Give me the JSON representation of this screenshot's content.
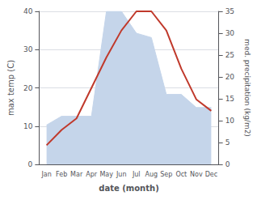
{
  "chart_data": {
    "type": "line",
    "xlabel": "date (month)",
    "ylabel": "max temp (C)",
    "y2label": "med. precipitation (kg/m2)",
    "categories": [
      "Jan",
      "Feb",
      "Mar",
      "Apr",
      "May",
      "Jun",
      "Jul",
      "Aug",
      "Sep",
      "Oct",
      "Nov",
      "Dec"
    ],
    "series": [
      {
        "type": "area",
        "axis": "y2",
        "color": "#c5d5ea",
        "values": [
          9,
          11,
          11,
          11,
          35,
          35,
          30,
          29,
          16,
          16,
          13,
          13
        ]
      },
      {
        "type": "line",
        "color": "#c0392b",
        "values": [
          5,
          9,
          12,
          20,
          28,
          35,
          40,
          40,
          35,
          25,
          17,
          14
        ]
      }
    ],
    "ylim": [
      0,
      40
    ],
    "yticks": [
      0,
      10,
      20,
      30,
      40
    ],
    "y2lim": [
      0,
      35
    ],
    "y2ticks": [
      0,
      5,
      10,
      15,
      20,
      25,
      30,
      35
    ],
    "grid": true
  }
}
